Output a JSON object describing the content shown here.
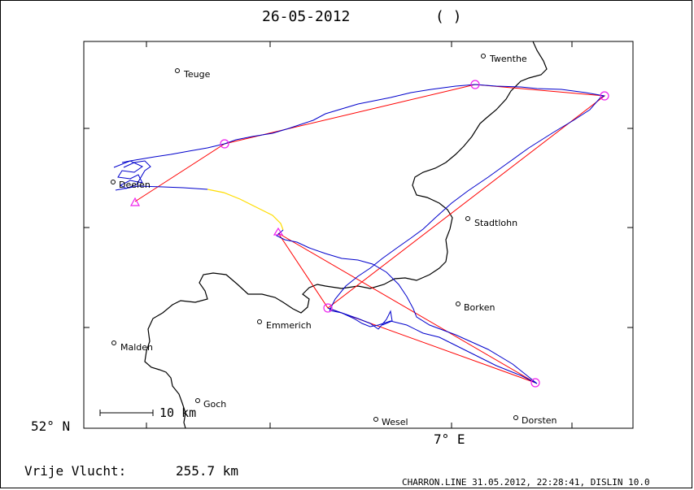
{
  "header": {
    "date": "26-05-2012",
    "parens": "( )"
  },
  "axes": {
    "lat_label": "52° N",
    "lon_label": "7° E"
  },
  "scale_bar": {
    "label": "10 km"
  },
  "places": [
    {
      "name": "Twenthe"
    },
    {
      "name": "Teuge"
    },
    {
      "name": "Deelen"
    },
    {
      "name": "Stadtlohn"
    },
    {
      "name": "Borken"
    },
    {
      "name": "Emmerich"
    },
    {
      "name": "Malden"
    },
    {
      "name": "Goch"
    },
    {
      "name": "Wesel"
    },
    {
      "name": "Dorsten"
    }
  ],
  "footer": {
    "distance_label": "Vrije Vlucht:",
    "distance_value": "255.7 km",
    "software": "CHARRON.LINE 31.05.2012, 22:28:41, DISLIN 10.0"
  },
  "colors": {
    "border": "#000000",
    "track": "#0000cc",
    "task": "#ff0000",
    "turnpoint": "#ee22ee",
    "engine_segment": "#ffdd00"
  }
}
